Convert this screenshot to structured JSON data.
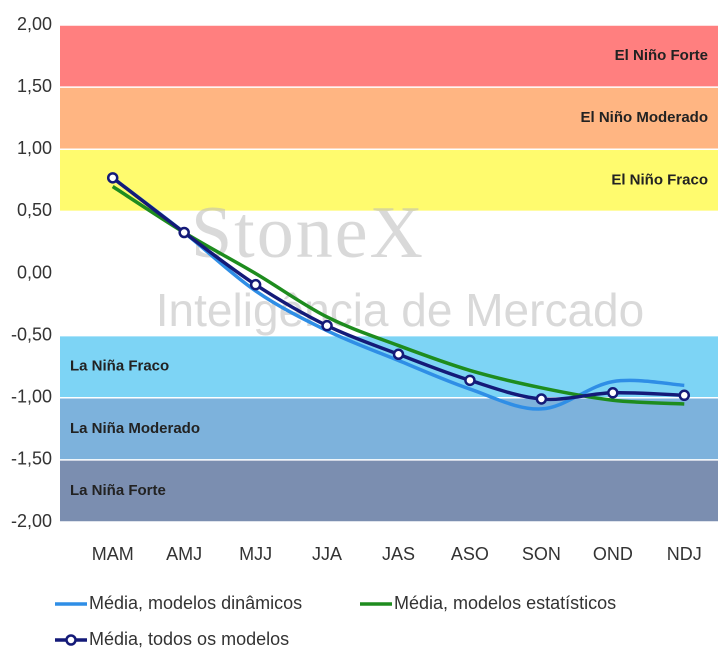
{
  "chart_data": {
    "type": "line",
    "categories": [
      "MAM",
      "AMJ",
      "MJJ",
      "JJA",
      "JAS",
      "ASO",
      "SON",
      "OND",
      "NDJ"
    ],
    "series": [
      {
        "name": "Média, modelos dinâmicos",
        "color": "#2f8ee6",
        "values": [
          0.77,
          0.33,
          -0.14,
          -0.46,
          -0.7,
          -0.93,
          -1.09,
          -0.87,
          -0.9
        ]
      },
      {
        "name": "Média, modelos estatísticos",
        "color": "#1e8c1e",
        "values": [
          0.7,
          0.33,
          0.0,
          -0.35,
          -0.58,
          -0.78,
          -0.92,
          -1.02,
          -1.05
        ]
      },
      {
        "name": "Média, todos os modelos",
        "color": "#141a78",
        "values": [
          0.77,
          0.33,
          -0.09,
          -0.42,
          -0.65,
          -0.86,
          -1.01,
          -0.96,
          -0.98
        ],
        "markers": true
      }
    ],
    "zones": [
      {
        "label": "El Niño Forte",
        "range": [
          1.5,
          2
        ],
        "color": "#ff7f7f"
      },
      {
        "label": "El Niño Moderado",
        "range": [
          1,
          1.5
        ],
        "color": "#ffb582"
      },
      {
        "label": "El Niño Fraco",
        "range": [
          0.5,
          1
        ],
        "color": "#fffb6e"
      },
      {
        "label": "La Niña Fraco",
        "range": [
          -1,
          -0.5
        ],
        "color": "#7dd4f5"
      },
      {
        "label": "La Niña Moderado",
        "range": [
          -1.5,
          -1
        ],
        "color": "#7db2dc"
      },
      {
        "label": "La Niña Forte",
        "range": [
          -2,
          -1.5
        ],
        "color": "#7b8eb0"
      }
    ],
    "watermark": [
      "StoneX",
      "Inteligência de Mercado"
    ],
    "ylim": [
      -2,
      2
    ],
    "yticks": [
      {
        "value": 2,
        "label": "2,00"
      },
      {
        "value": 1.5,
        "label": "1,50"
      },
      {
        "value": 1,
        "label": "1,00"
      },
      {
        "value": 0.5,
        "label": "0,50"
      },
      {
        "value": 0,
        "label": "0,00"
      },
      {
        "value": -0.5,
        "label": "-0,50"
      },
      {
        "value": -1,
        "label": "-1,00"
      },
      {
        "value": -1.5,
        "label": "-1,50"
      },
      {
        "value": -2,
        "label": "-2,00"
      }
    ]
  }
}
